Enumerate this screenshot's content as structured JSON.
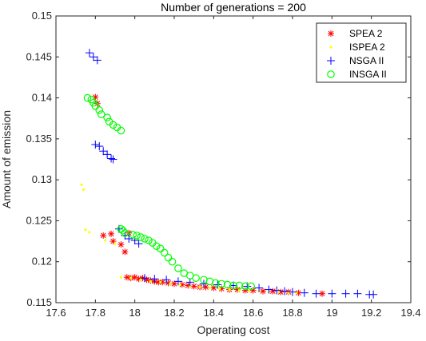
{
  "chart_data": {
    "type": "scatter",
    "title": "Number of generations = 200",
    "xlabel": "Operating cost",
    "ylabel": "Amount of emission",
    "xlim": [
      17.6,
      19.4
    ],
    "ylim": [
      0.115,
      0.15
    ],
    "xticks": [
      17.6,
      17.8,
      18,
      18.2,
      18.4,
      18.6,
      18.8,
      19,
      19.2,
      19.4
    ],
    "xtick_labels": [
      "17.6",
      "17.8",
      "18",
      "18.2",
      "18.4",
      "18.6",
      "18.8",
      "19",
      "19.2",
      "19.4"
    ],
    "yticks": [
      0.115,
      0.12,
      0.125,
      0.13,
      0.135,
      0.14,
      0.145,
      0.15
    ],
    "ytick_labels": [
      "0.115",
      "0.12",
      "0.125",
      "0.13",
      "0.135",
      "0.14",
      "0.145",
      "0.15"
    ],
    "grid": false,
    "legend_position": "top-right",
    "series": [
      {
        "name": "SPEA 2",
        "marker": "asterisk",
        "color": "#ff0000",
        "points": [
          [
            17.8,
            0.1401
          ],
          [
            17.81,
            0.1393
          ],
          [
            17.84,
            0.1232
          ],
          [
            17.88,
            0.1234
          ],
          [
            17.89,
            0.1225
          ],
          [
            17.93,
            0.1221
          ],
          [
            17.95,
            0.1212
          ],
          [
            17.97,
            0.1235
          ],
          [
            17.96,
            0.1181
          ],
          [
            17.98,
            0.118
          ],
          [
            18.0,
            0.1181
          ],
          [
            18.02,
            0.1179
          ],
          [
            18.04,
            0.118
          ],
          [
            18.06,
            0.1178
          ],
          [
            18.08,
            0.1177
          ],
          [
            18.1,
            0.1176
          ],
          [
            18.12,
            0.1175
          ],
          [
            18.14,
            0.1175
          ],
          [
            18.17,
            0.1174
          ],
          [
            18.2,
            0.1173
          ],
          [
            18.24,
            0.1172
          ],
          [
            18.27,
            0.1171
          ],
          [
            18.3,
            0.117
          ],
          [
            18.33,
            0.1169
          ],
          [
            18.36,
            0.1169
          ],
          [
            18.4,
            0.1168
          ],
          [
            18.44,
            0.1167
          ],
          [
            18.48,
            0.1166
          ],
          [
            18.52,
            0.1166
          ],
          [
            18.56,
            0.1165
          ],
          [
            18.6,
            0.1165
          ],
          [
            18.65,
            0.1164
          ],
          [
            18.7,
            0.1164
          ],
          [
            18.74,
            0.1163
          ],
          [
            18.78,
            0.1163
          ],
          [
            18.83,
            0.1162
          ],
          [
            18.95,
            0.1161
          ]
        ]
      },
      {
        "name": "ISPEA 2",
        "marker": "dot",
        "color": "#ffff00",
        "points": [
          [
            17.73,
            0.1294
          ],
          [
            17.74,
            0.1288
          ],
          [
            17.75,
            0.1239
          ],
          [
            17.77,
            0.1236
          ],
          [
            17.85,
            0.1226
          ],
          [
            17.9,
            0.1222
          ],
          [
            17.93,
            0.1181
          ],
          [
            17.98,
            0.118
          ],
          [
            18.03,
            0.1178
          ],
          [
            18.08,
            0.1176
          ],
          [
            18.13,
            0.1175
          ],
          [
            18.18,
            0.1173
          ],
          [
            18.23,
            0.1172
          ],
          [
            18.28,
            0.117
          ],
          [
            18.33,
            0.1169
          ],
          [
            18.38,
            0.1168
          ],
          [
            18.43,
            0.1167
          ],
          [
            18.48,
            0.1166
          ],
          [
            18.53,
            0.1165
          ],
          [
            18.58,
            0.1164
          ],
          [
            18.63,
            0.1164
          ],
          [
            18.68,
            0.1163
          ],
          [
            18.73,
            0.1163
          ],
          [
            18.78,
            0.1162
          ],
          [
            18.82,
            0.1162
          ]
        ]
      },
      {
        "name": "NSGA II",
        "marker": "plus",
        "color": "#0000ff",
        "points": [
          [
            17.77,
            0.1455
          ],
          [
            17.79,
            0.145
          ],
          [
            17.81,
            0.1446
          ],
          [
            17.8,
            0.1343
          ],
          [
            17.82,
            0.1341
          ],
          [
            17.84,
            0.1335
          ],
          [
            17.86,
            0.1331
          ],
          [
            17.88,
            0.1326
          ],
          [
            17.89,
            0.1325
          ],
          [
            17.92,
            0.124
          ],
          [
            17.95,
            0.1232
          ],
          [
            17.97,
            0.1228
          ],
          [
            18.0,
            0.1226
          ],
          [
            18.02,
            0.1222
          ],
          [
            18.05,
            0.118
          ],
          [
            18.1,
            0.1179
          ],
          [
            18.16,
            0.1178
          ],
          [
            18.22,
            0.1176
          ],
          [
            18.28,
            0.1175
          ],
          [
            18.35,
            0.1173
          ],
          [
            18.42,
            0.1172
          ],
          [
            18.5,
            0.1171
          ],
          [
            18.57,
            0.117
          ],
          [
            18.63,
            0.1168
          ],
          [
            18.68,
            0.1166
          ],
          [
            18.72,
            0.1165
          ],
          [
            18.76,
            0.1164
          ],
          [
            18.8,
            0.1163
          ],
          [
            18.86,
            0.1162
          ],
          [
            18.92,
            0.1161
          ],
          [
            19.0,
            0.1161
          ],
          [
            19.07,
            0.1161
          ],
          [
            19.13,
            0.1161
          ],
          [
            19.19,
            0.116
          ],
          [
            19.21,
            0.116
          ]
        ]
      },
      {
        "name": "INSGA II",
        "marker": "circle",
        "color": "#00ff00",
        "points": [
          [
            17.76,
            0.14
          ],
          [
            17.78,
            0.1398
          ],
          [
            17.79,
            0.1394
          ],
          [
            17.8,
            0.139
          ],
          [
            17.82,
            0.1385
          ],
          [
            17.83,
            0.138
          ],
          [
            17.86,
            0.1376
          ],
          [
            17.87,
            0.1371
          ],
          [
            17.89,
            0.1367
          ],
          [
            17.91,
            0.1364
          ],
          [
            17.93,
            0.136
          ],
          [
            17.93,
            0.124
          ],
          [
            17.94,
            0.1238
          ],
          [
            17.95,
            0.1235
          ],
          [
            17.99,
            0.1233
          ],
          [
            18.01,
            0.1232
          ],
          [
            18.03,
            0.123
          ],
          [
            18.05,
            0.1228
          ],
          [
            18.07,
            0.1226
          ],
          [
            18.09,
            0.1223
          ],
          [
            18.11,
            0.1219
          ],
          [
            18.13,
            0.1216
          ],
          [
            18.15,
            0.1211
          ],
          [
            18.17,
            0.1205
          ],
          [
            18.19,
            0.12
          ],
          [
            18.22,
            0.1192
          ],
          [
            18.25,
            0.1186
          ],
          [
            18.28,
            0.1183
          ],
          [
            18.31,
            0.118
          ],
          [
            18.35,
            0.1178
          ],
          [
            18.38,
            0.1176
          ],
          [
            18.41,
            0.1174
          ],
          [
            18.44,
            0.1173
          ],
          [
            18.47,
            0.1172
          ],
          [
            18.5,
            0.1171
          ],
          [
            18.53,
            0.1171
          ],
          [
            18.56,
            0.117
          ],
          [
            18.59,
            0.117
          ]
        ]
      }
    ]
  }
}
